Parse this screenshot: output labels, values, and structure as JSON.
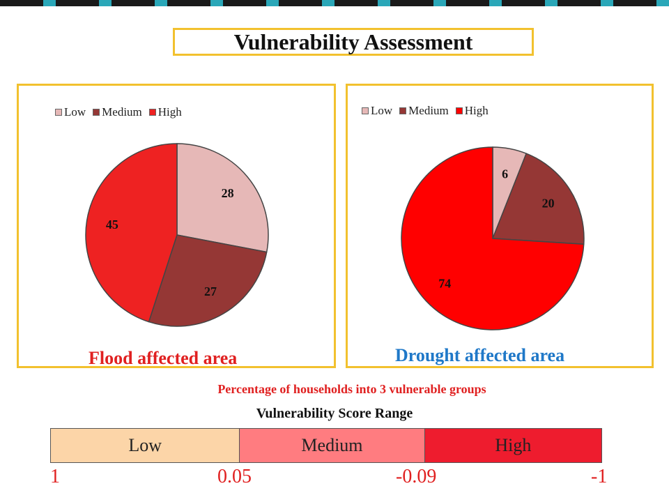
{
  "title": "Vulnerability Assessment",
  "colors": {
    "low": "#e6b8b7",
    "medium": "#953735",
    "high": "#ff0000",
    "high_flood": "#ee2222",
    "panel_border": "#f2c12e",
    "flood_title": "#e02020",
    "drought_title": "#1f78c8",
    "score_low": "#fcd5a8",
    "score_medium": "#ff7c80",
    "score_high": "#ee1c2e"
  },
  "chart_data": [
    {
      "type": "pie",
      "title": "Flood affected area",
      "legend": [
        "Low",
        "Medium",
        "High"
      ],
      "categories": [
        "Low",
        "Medium",
        "High"
      ],
      "values": [
        28,
        27,
        45
      ],
      "legend_position": "top"
    },
    {
      "type": "pie",
      "title": "Drought affected area",
      "legend": [
        "Low",
        "Medium",
        "High"
      ],
      "categories": [
        "Low",
        "Medium",
        "High"
      ],
      "values": [
        6,
        20,
        74
      ],
      "legend_position": "top"
    }
  ],
  "caption": "Percentage of households into 3 vulnerable groups",
  "score_range": {
    "title": "Vulnerability Score Range",
    "bands": [
      "Low",
      "Medium",
      "High"
    ],
    "ticks": [
      "1",
      "0.05",
      "-0.09",
      "-1"
    ]
  }
}
